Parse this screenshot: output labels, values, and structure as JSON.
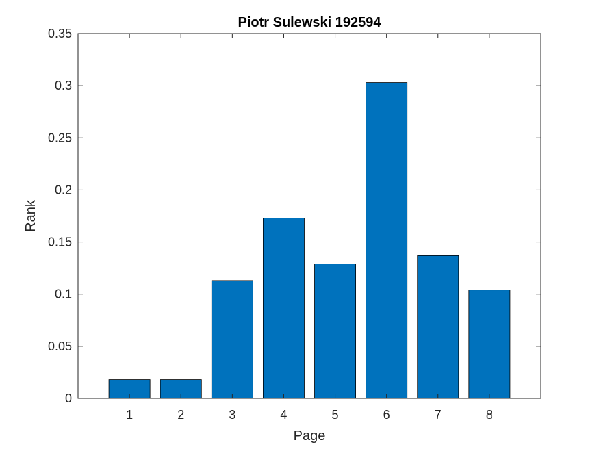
{
  "chart_data": {
    "type": "bar",
    "title": "Piotr Sulewski 192594",
    "xlabel": "Page",
    "ylabel": "Rank",
    "categories": [
      "1",
      "2",
      "3",
      "4",
      "5",
      "6",
      "7",
      "8"
    ],
    "values": [
      0.018,
      0.018,
      0.113,
      0.173,
      0.129,
      0.303,
      0.137,
      0.104
    ],
    "ylim": [
      0,
      0.35
    ],
    "xlim": [
      0,
      9
    ],
    "yticks": [
      0,
      0.05,
      0.1,
      0.15,
      0.2,
      0.25,
      0.3,
      0.35
    ],
    "ytick_labels": [
      "0",
      "0.05",
      "0.1",
      "0.15",
      "0.2",
      "0.25",
      "0.3",
      "0.35"
    ],
    "grid": false,
    "bar_color": "#0072BD",
    "bar_edge_color": "#000000"
  }
}
